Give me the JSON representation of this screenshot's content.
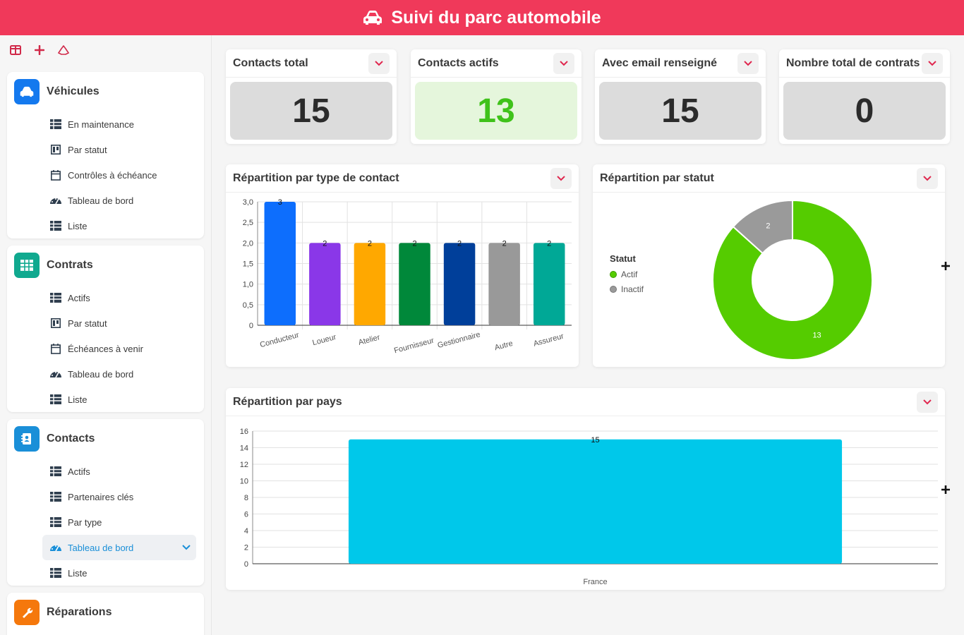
{
  "app": {
    "title": "Suivi du parc automobile"
  },
  "sidebar": {
    "groups": [
      {
        "title": "Véhicules",
        "items": [
          {
            "label": "En maintenance"
          },
          {
            "label": "Par statut"
          },
          {
            "label": "Contrôles à échéance"
          },
          {
            "label": "Tableau de bord"
          },
          {
            "label": "Liste"
          }
        ]
      },
      {
        "title": "Contrats",
        "items": [
          {
            "label": "Actifs"
          },
          {
            "label": "Par statut"
          },
          {
            "label": "Échéances à venir"
          },
          {
            "label": "Tableau de bord"
          },
          {
            "label": "Liste"
          }
        ]
      },
      {
        "title": "Contacts",
        "items": [
          {
            "label": "Actifs"
          },
          {
            "label": "Partenaires clés"
          },
          {
            "label": "Par type"
          },
          {
            "label": "Tableau de bord"
          },
          {
            "label": "Liste"
          }
        ]
      },
      {
        "title": "Réparations",
        "items": []
      }
    ]
  },
  "kpis": [
    {
      "title": "Contacts total",
      "value": "15"
    },
    {
      "title": "Contacts actifs",
      "value": "13"
    },
    {
      "title": "Avec email renseigné",
      "value": "15"
    },
    {
      "title": "Nombre total de contrats",
      "value": "0"
    }
  ],
  "charts": {
    "by_type": {
      "title": "Répartition par type de contact"
    },
    "by_status": {
      "title": "Répartition par statut",
      "legend_title": "Statut",
      "legend": [
        "Actif",
        "Inactif"
      ]
    },
    "by_country": {
      "title": "Répartition par pays"
    }
  },
  "colors": {
    "brand": "#f0395a",
    "accent_chevron": "#e0284f"
  },
  "chart_data": [
    {
      "type": "bar",
      "title": "Répartition par type de contact",
      "categories": [
        "Conducteur",
        "Loueur",
        "Atelier",
        "Fournisseur",
        "Gestionnaire",
        "Autre",
        "Assureur"
      ],
      "values": [
        3,
        2,
        2,
        2,
        2,
        2,
        2
      ],
      "colors": [
        "#0d6efd",
        "#8a37e8",
        "#ffa800",
        "#00883a",
        "#003f9a",
        "#999999",
        "#00a896"
      ],
      "yticks": [
        "0",
        "0,5",
        "1,0",
        "1,5",
        "2,0",
        "2,5",
        "3,0"
      ],
      "ylim": [
        0,
        3
      ]
    },
    {
      "type": "pie",
      "title": "Répartition par statut",
      "labels": [
        "Actif",
        "Inactif"
      ],
      "values": [
        13,
        2
      ],
      "colors": [
        "#55cc00",
        "#9a9a9a"
      ]
    },
    {
      "type": "bar",
      "title": "Répartition par pays",
      "categories": [
        "France"
      ],
      "values": [
        15
      ],
      "colors": [
        "#00c8ea"
      ],
      "yticks": [
        "0",
        "2",
        "4",
        "6",
        "8",
        "10",
        "12",
        "14",
        "16"
      ],
      "ylim": [
        0,
        16
      ]
    }
  ]
}
